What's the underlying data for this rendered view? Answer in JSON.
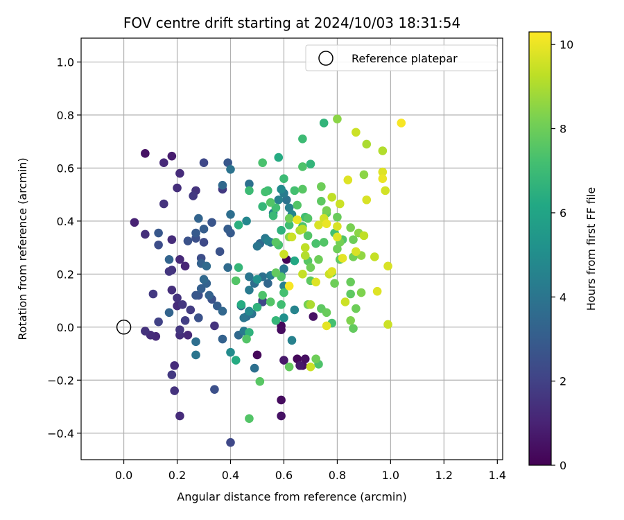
{
  "chart_data": {
    "type": "scatter",
    "title": "FOV centre drift starting at 2024/10/03 18:31:54",
    "xlabel": "Angular distance from reference (arcmin)",
    "ylabel": "Rotation from reference (arcmin)",
    "xlim": [
      -0.16,
      1.42
    ],
    "ylim": [
      -0.5,
      1.09
    ],
    "xticks": [
      0.0,
      0.2,
      0.4,
      0.6,
      0.8,
      1.0,
      1.2,
      1.4
    ],
    "xtick_labels": [
      "0.0",
      "0.2",
      "0.4",
      "0.6",
      "0.8",
      "1.0",
      "1.2",
      "1.4"
    ],
    "yticks": [
      -0.4,
      -0.2,
      0.0,
      0.2,
      0.4,
      0.6,
      0.8,
      1.0
    ],
    "ytick_labels": [
      "−0.4",
      "−0.2",
      "0.0",
      "0.2",
      "0.4",
      "0.6",
      "0.8",
      "1.0"
    ],
    "grid": true,
    "legend": {
      "position": "upper-right",
      "entries": [
        {
          "label": "Reference platepar",
          "marker": "open-circle"
        }
      ]
    },
    "reference_point": {
      "x": 0.0,
      "y": 0.0
    },
    "colorbar": {
      "label": "Hours from first FF file",
      "colormap": "viridis",
      "range": [
        0,
        10.3
      ],
      "ticks": [
        0,
        2,
        4,
        6,
        8,
        10
      ],
      "tick_labels": [
        "0",
        "2",
        "4",
        "6",
        "8",
        "10"
      ]
    },
    "points": [
      {
        "x": 0.08,
        "y": 0.655,
        "c": 0.5
      },
      {
        "x": 0.18,
        "y": 0.645,
        "c": 0.8
      },
      {
        "x": 0.15,
        "y": 0.62,
        "c": 1.2
      },
      {
        "x": 0.21,
        "y": 0.58,
        "c": 1.3
      },
      {
        "x": 0.04,
        "y": 0.395,
        "c": 1.0
      },
      {
        "x": 0.08,
        "y": 0.35,
        "c": 1.4
      },
      {
        "x": 0.15,
        "y": 0.465,
        "c": 1.5
      },
      {
        "x": 0.2,
        "y": 0.525,
        "c": 1.4
      },
      {
        "x": 0.18,
        "y": 0.33,
        "c": 1.3
      },
      {
        "x": 0.21,
        "y": 0.255,
        "c": 1.2
      },
      {
        "x": 0.17,
        "y": 0.21,
        "c": 1.6
      },
      {
        "x": 0.23,
        "y": 0.23,
        "c": 1.1
      },
      {
        "x": 0.18,
        "y": 0.215,
        "c": 1.5
      },
      {
        "x": 0.26,
        "y": 0.495,
        "c": 1.7
      },
      {
        "x": 0.27,
        "y": 0.515,
        "c": 1.5
      },
      {
        "x": 0.3,
        "y": 0.62,
        "c": 2.2
      },
      {
        "x": 0.11,
        "y": 0.125,
        "c": 1.7
      },
      {
        "x": 0.18,
        "y": 0.14,
        "c": 1.4
      },
      {
        "x": 0.2,
        "y": 0.11,
        "c": 1.5
      },
      {
        "x": 0.2,
        "y": 0.08,
        "c": 1.3
      },
      {
        "x": 0.22,
        "y": 0.085,
        "c": 1.6
      },
      {
        "x": 0.13,
        "y": 0.02,
        "c": 2.0
      },
      {
        "x": 0.08,
        "y": -0.015,
        "c": 1.5
      },
      {
        "x": 0.1,
        "y": -0.03,
        "c": 1.3
      },
      {
        "x": 0.12,
        "y": -0.035,
        "c": 1.2
      },
      {
        "x": 0.21,
        "y": -0.01,
        "c": 1.6
      },
      {
        "x": 0.21,
        "y": -0.03,
        "c": 1.4
      },
      {
        "x": 0.24,
        "y": -0.03,
        "c": 1.2
      },
      {
        "x": 0.23,
        "y": 0.025,
        "c": 1.9
      },
      {
        "x": 0.25,
        "y": 0.065,
        "c": 1.8
      },
      {
        "x": 0.19,
        "y": -0.145,
        "c": 1.3
      },
      {
        "x": 0.18,
        "y": -0.18,
        "c": 1.7
      },
      {
        "x": 0.19,
        "y": -0.24,
        "c": 1.5
      },
      {
        "x": 0.21,
        "y": -0.335,
        "c": 1.3
      },
      {
        "x": 0.34,
        "y": 0.005,
        "c": 1.5
      },
      {
        "x": 0.28,
        "y": 0.035,
        "c": 2.4
      },
      {
        "x": 0.13,
        "y": 0.355,
        "c": 2.8
      },
      {
        "x": 0.13,
        "y": 0.31,
        "c": 2.4
      },
      {
        "x": 0.24,
        "y": 0.325,
        "c": 2.6
      },
      {
        "x": 0.27,
        "y": 0.335,
        "c": 2.5
      },
      {
        "x": 0.27,
        "y": 0.355,
        "c": 2.9
      },
      {
        "x": 0.3,
        "y": 0.32,
        "c": 2.3
      },
      {
        "x": 0.28,
        "y": 0.41,
        "c": 3.3
      },
      {
        "x": 0.3,
        "y": 0.37,
        "c": 3.0
      },
      {
        "x": 0.33,
        "y": 0.395,
        "c": 2.7
      },
      {
        "x": 0.37,
        "y": 0.52,
        "c": 1.7
      },
      {
        "x": 0.36,
        "y": 0.285,
        "c": 2.6
      },
      {
        "x": 0.29,
        "y": 0.26,
        "c": 2.4
      },
      {
        "x": 0.29,
        "y": 0.24,
        "c": 3.2
      },
      {
        "x": 0.31,
        "y": 0.23,
        "c": 3.6
      },
      {
        "x": 0.3,
        "y": 0.18,
        "c": 3.5
      },
      {
        "x": 0.31,
        "y": 0.165,
        "c": 3.2
      },
      {
        "x": 0.29,
        "y": 0.145,
        "c": 3.1
      },
      {
        "x": 0.32,
        "y": 0.12,
        "c": 3.2
      },
      {
        "x": 0.27,
        "y": 0.12,
        "c": 2.8
      },
      {
        "x": 0.33,
        "y": 0.105,
        "c": 2.6
      },
      {
        "x": 0.28,
        "y": 0.12,
        "c": 2.5
      },
      {
        "x": 0.28,
        "y": 0.035,
        "c": 2.6
      },
      {
        "x": 0.17,
        "y": 0.055,
        "c": 3.3
      },
      {
        "x": 0.17,
        "y": 0.255,
        "c": 3.3
      },
      {
        "x": 0.35,
        "y": 0.08,
        "c": 3.0
      },
      {
        "x": 0.37,
        "y": 0.06,
        "c": 3.4
      },
      {
        "x": 0.27,
        "y": -0.055,
        "c": 3.7
      },
      {
        "x": 0.27,
        "y": -0.105,
        "c": 4.0
      },
      {
        "x": 0.34,
        "y": -0.235,
        "c": 2.5
      },
      {
        "x": 0.37,
        "y": -0.045,
        "c": 3.2
      },
      {
        "x": 0.4,
        "y": -0.435,
        "c": 2.2
      },
      {
        "x": 0.37,
        "y": 0.535,
        "c": 3.5
      },
      {
        "x": 0.39,
        "y": 0.62,
        "c": 2.8
      },
      {
        "x": 0.4,
        "y": 0.595,
        "c": 3.9
      },
      {
        "x": 0.39,
        "y": 0.37,
        "c": 3.0
      },
      {
        "x": 0.4,
        "y": 0.355,
        "c": 2.9
      },
      {
        "x": 0.4,
        "y": 0.425,
        "c": 3.7
      },
      {
        "x": 0.39,
        "y": 0.225,
        "c": 3.6
      },
      {
        "x": 0.44,
        "y": 0.08,
        "c": 3.4
      },
      {
        "x": 0.43,
        "y": -0.03,
        "c": 3.5
      },
      {
        "x": 0.4,
        "y": -0.095,
        "c": 4.9
      },
      {
        "x": 0.46,
        "y": 0.4,
        "c": 4.7
      },
      {
        "x": 0.47,
        "y": 0.54,
        "c": 3.8
      },
      {
        "x": 0.5,
        "y": 0.305,
        "c": 4.0
      },
      {
        "x": 0.51,
        "y": 0.315,
        "c": 3.5
      },
      {
        "x": 0.45,
        "y": 0.035,
        "c": 4.0
      },
      {
        "x": 0.46,
        "y": 0.04,
        "c": 3.7
      },
      {
        "x": 0.47,
        "y": 0.06,
        "c": 4.8
      },
      {
        "x": 0.48,
        "y": 0.05,
        "c": 3.9
      },
      {
        "x": 0.47,
        "y": 0.14,
        "c": 4.2
      },
      {
        "x": 0.47,
        "y": 0.19,
        "c": 4.0
      },
      {
        "x": 0.49,
        "y": 0.165,
        "c": 3.7
      },
      {
        "x": 0.52,
        "y": 0.19,
        "c": 3.8
      },
      {
        "x": 0.54,
        "y": 0.165,
        "c": 3.4
      },
      {
        "x": 0.5,
        "y": 0.18,
        "c": 5.2
      },
      {
        "x": 0.55,
        "y": 0.195,
        "c": 4.3
      },
      {
        "x": 0.45,
        "y": -0.015,
        "c": 4.2
      },
      {
        "x": 0.49,
        "y": -0.155,
        "c": 3.8
      },
      {
        "x": 0.52,
        "y": 0.1,
        "c": 1.2
      },
      {
        "x": 0.52,
        "y": 0.095,
        "c": 2.2
      },
      {
        "x": 0.53,
        "y": 0.335,
        "c": 4.1
      },
      {
        "x": 0.54,
        "y": 0.325,
        "c": 4.5
      },
      {
        "x": 0.55,
        "y": 0.32,
        "c": 3.8
      },
      {
        "x": 0.58,
        "y": 0.31,
        "c": 4.0
      },
      {
        "x": 0.56,
        "y": 0.43,
        "c": 4.5
      },
      {
        "x": 0.58,
        "y": 0.48,
        "c": 4.5
      },
      {
        "x": 0.59,
        "y": 0.52,
        "c": 4.8
      },
      {
        "x": 0.6,
        "y": 0.505,
        "c": 4.3
      },
      {
        "x": 0.61,
        "y": 0.48,
        "c": 3.9
      },
      {
        "x": 0.62,
        "y": 0.45,
        "c": 4.4
      },
      {
        "x": 0.63,
        "y": 0.425,
        "c": 4.7
      },
      {
        "x": 0.6,
        "y": 0.22,
        "c": 4.0
      },
      {
        "x": 0.59,
        "y": 0.195,
        "c": 4.2
      },
      {
        "x": 0.6,
        "y": 0.155,
        "c": 4.4
      },
      {
        "x": 0.64,
        "y": 0.065,
        "c": 4.6
      },
      {
        "x": 0.63,
        "y": -0.05,
        "c": 4.5
      },
      {
        "x": 0.6,
        "y": 0.035,
        "c": 5.1
      },
      {
        "x": 0.59,
        "y": 0.005,
        "c": 0.2
      },
      {
        "x": 0.59,
        "y": -0.01,
        "c": 0.3
      },
      {
        "x": 0.6,
        "y": -0.125,
        "c": 0.7
      },
      {
        "x": 0.65,
        "y": -0.12,
        "c": 0.2
      },
      {
        "x": 0.66,
        "y": -0.145,
        "c": 0.7
      },
      {
        "x": 0.67,
        "y": -0.145,
        "c": 0.4
      },
      {
        "x": 0.5,
        "y": -0.105,
        "c": 0.2
      },
      {
        "x": 0.59,
        "y": -0.275,
        "c": 0.3
      },
      {
        "x": 0.59,
        "y": -0.335,
        "c": 0.5
      },
      {
        "x": 0.61,
        "y": 0.255,
        "c": 0.1
      },
      {
        "x": 0.71,
        "y": 0.04,
        "c": 0.5
      },
      {
        "x": 0.68,
        "y": -0.12,
        "c": 0.4
      },
      {
        "x": 0.43,
        "y": 0.225,
        "c": 6.8
      },
      {
        "x": 0.42,
        "y": 0.175,
        "c": 7.5
      },
      {
        "x": 0.43,
        "y": 0.385,
        "c": 6.5
      },
      {
        "x": 0.47,
        "y": 0.515,
        "c": 7.0
      },
      {
        "x": 0.52,
        "y": 0.62,
        "c": 7.3
      },
      {
        "x": 0.53,
        "y": 0.51,
        "c": 7.2
      },
      {
        "x": 0.54,
        "y": 0.515,
        "c": 7.0
      },
      {
        "x": 0.52,
        "y": 0.455,
        "c": 6.8
      },
      {
        "x": 0.55,
        "y": 0.47,
        "c": 7.5
      },
      {
        "x": 0.57,
        "y": 0.45,
        "c": 7.1
      },
      {
        "x": 0.56,
        "y": 0.42,
        "c": 6.9
      },
      {
        "x": 0.58,
        "y": 0.64,
        "c": 6.3
      },
      {
        "x": 0.6,
        "y": 0.56,
        "c": 7.0
      },
      {
        "x": 0.57,
        "y": 0.32,
        "c": 7.6
      },
      {
        "x": 0.58,
        "y": 0.31,
        "c": 7.3
      },
      {
        "x": 0.59,
        "y": 0.365,
        "c": 6.6
      },
      {
        "x": 0.62,
        "y": 0.385,
        "c": 7.1
      },
      {
        "x": 0.57,
        "y": 0.205,
        "c": 7.8
      },
      {
        "x": 0.59,
        "y": 0.19,
        "c": 7.5
      },
      {
        "x": 0.6,
        "y": 0.13,
        "c": 7.2
      },
      {
        "x": 0.59,
        "y": 0.085,
        "c": 7.1
      },
      {
        "x": 0.57,
        "y": 0.025,
        "c": 6.8
      },
      {
        "x": 0.44,
        "y": 0.085,
        "c": 6.3
      },
      {
        "x": 0.46,
        "y": -0.045,
        "c": 7.5
      },
      {
        "x": 0.47,
        "y": -0.02,
        "c": 6.6
      },
      {
        "x": 0.42,
        "y": -0.125,
        "c": 6.3
      },
      {
        "x": 0.51,
        "y": -0.205,
        "c": 7.6
      },
      {
        "x": 0.47,
        "y": -0.345,
        "c": 7.5
      },
      {
        "x": 0.5,
        "y": 0.075,
        "c": 6.6
      },
      {
        "x": 0.52,
        "y": 0.12,
        "c": 7.4
      },
      {
        "x": 0.55,
        "y": 0.095,
        "c": 7.5
      },
      {
        "x": 0.62,
        "y": -0.15,
        "c": 7.8
      },
      {
        "x": 0.64,
        "y": 0.25,
        "c": 6.2
      },
      {
        "x": 0.65,
        "y": 0.46,
        "c": 7.5
      },
      {
        "x": 0.64,
        "y": 0.515,
        "c": 7.2
      },
      {
        "x": 0.67,
        "y": 0.52,
        "c": 7.6
      },
      {
        "x": 0.67,
        "y": 0.71,
        "c": 7.0
      },
      {
        "x": 0.67,
        "y": 0.605,
        "c": 7.4
      },
      {
        "x": 0.7,
        "y": 0.615,
        "c": 6.7
      },
      {
        "x": 0.68,
        "y": 0.415,
        "c": 7.1
      },
      {
        "x": 0.69,
        "y": 0.41,
        "c": 7.5
      },
      {
        "x": 0.67,
        "y": 0.38,
        "c": 7.3
      },
      {
        "x": 0.69,
        "y": 0.345,
        "c": 7.5
      },
      {
        "x": 0.72,
        "y": 0.315,
        "c": 7.3
      },
      {
        "x": 0.69,
        "y": 0.25,
        "c": 7.6
      },
      {
        "x": 0.7,
        "y": 0.225,
        "c": 8.0
      },
      {
        "x": 0.7,
        "y": 0.175,
        "c": 7.7
      },
      {
        "x": 0.69,
        "y": 0.085,
        "c": 8.1
      },
      {
        "x": 0.72,
        "y": -0.12,
        "c": 8.0
      },
      {
        "x": 0.73,
        "y": -0.14,
        "c": 7.4
      },
      {
        "x": 0.74,
        "y": 0.07,
        "c": 7.7
      },
      {
        "x": 0.76,
        "y": 0.055,
        "c": 7.9
      },
      {
        "x": 0.78,
        "y": 0.015,
        "c": 7.2
      },
      {
        "x": 0.75,
        "y": 0.77,
        "c": 6.7
      },
      {
        "x": 0.74,
        "y": 0.53,
        "c": 8.0
      },
      {
        "x": 0.74,
        "y": 0.475,
        "c": 7.7
      },
      {
        "x": 0.76,
        "y": 0.44,
        "c": 8.2
      },
      {
        "x": 0.76,
        "y": 0.43,
        "c": 7.8
      },
      {
        "x": 0.75,
        "y": 0.32,
        "c": 7.5
      },
      {
        "x": 0.73,
        "y": 0.255,
        "c": 8.0
      },
      {
        "x": 0.78,
        "y": 0.205,
        "c": 7.5
      },
      {
        "x": 0.79,
        "y": 0.165,
        "c": 8.0
      },
      {
        "x": 0.8,
        "y": 0.785,
        "c": 8.5
      },
      {
        "x": 0.8,
        "y": 0.415,
        "c": 7.9
      },
      {
        "x": 0.79,
        "y": 0.355,
        "c": 7.2
      },
      {
        "x": 0.81,
        "y": 0.32,
        "c": 8.1
      },
      {
        "x": 0.82,
        "y": 0.33,
        "c": 7.5
      },
      {
        "x": 0.8,
        "y": 0.295,
        "c": 8.0
      },
      {
        "x": 0.81,
        "y": 0.255,
        "c": 7.7
      },
      {
        "x": 0.85,
        "y": 0.375,
        "c": 8.2
      },
      {
        "x": 0.86,
        "y": 0.33,
        "c": 8.0
      },
      {
        "x": 0.88,
        "y": 0.355,
        "c": 8.5
      },
      {
        "x": 0.86,
        "y": 0.265,
        "c": 8.1
      },
      {
        "x": 0.85,
        "y": 0.17,
        "c": 7.9
      },
      {
        "x": 0.85,
        "y": 0.125,
        "c": 7.7
      },
      {
        "x": 0.85,
        "y": 0.025,
        "c": 8.3
      },
      {
        "x": 0.86,
        "y": -0.005,
        "c": 7.8
      },
      {
        "x": 0.87,
        "y": 0.07,
        "c": 8.0
      },
      {
        "x": 0.89,
        "y": 0.13,
        "c": 8.3
      },
      {
        "x": 0.89,
        "y": 0.27,
        "c": 8.6
      },
      {
        "x": 0.9,
        "y": 0.575,
        "c": 8.5
      },
      {
        "x": 0.62,
        "y": 0.41,
        "c": 8.0
      },
      {
        "x": 0.62,
        "y": 0.34,
        "c": 8.5
      },
      {
        "x": 0.63,
        "y": 0.34,
        "c": 9.5
      },
      {
        "x": 0.6,
        "y": 0.275,
        "c": 9.5
      },
      {
        "x": 0.62,
        "y": 0.155,
        "c": 10.2
      },
      {
        "x": 0.65,
        "y": 0.405,
        "c": 10.0
      },
      {
        "x": 0.66,
        "y": 0.365,
        "c": 9.0
      },
      {
        "x": 0.67,
        "y": 0.37,
        "c": 9.2
      },
      {
        "x": 0.68,
        "y": 0.3,
        "c": 9.3
      },
      {
        "x": 0.68,
        "y": 0.27,
        "c": 9.1
      },
      {
        "x": 0.67,
        "y": 0.2,
        "c": 9.4
      },
      {
        "x": 0.7,
        "y": 0.085,
        "c": 9.0
      },
      {
        "x": 0.7,
        "y": -0.15,
        "c": 9.5
      },
      {
        "x": 0.72,
        "y": 0.17,
        "c": 9.8
      },
      {
        "x": 0.73,
        "y": 0.385,
        "c": 9.7
      },
      {
        "x": 0.75,
        "y": 0.41,
        "c": 9.6
      },
      {
        "x": 0.76,
        "y": 0.39,
        "c": 10.0
      },
      {
        "x": 0.77,
        "y": 0.2,
        "c": 9.5
      },
      {
        "x": 0.78,
        "y": 0.21,
        "c": 9.8
      },
      {
        "x": 0.78,
        "y": 0.49,
        "c": 9.3
      },
      {
        "x": 0.8,
        "y": 0.38,
        "c": 9.7
      },
      {
        "x": 0.8,
        "y": 0.34,
        "c": 9.8
      },
      {
        "x": 0.81,
        "y": 0.465,
        "c": 9.5
      },
      {
        "x": 0.82,
        "y": 0.26,
        "c": 9.9
      },
      {
        "x": 0.83,
        "y": 0.095,
        "c": 9.5
      },
      {
        "x": 0.76,
        "y": 0.005,
        "c": 9.9
      },
      {
        "x": 0.84,
        "y": 0.555,
        "c": 9.8
      },
      {
        "x": 0.87,
        "y": 0.735,
        "c": 9.5
      },
      {
        "x": 0.87,
        "y": 0.285,
        "c": 9.7
      },
      {
        "x": 0.9,
        "y": 0.345,
        "c": 9.3
      },
      {
        "x": 0.91,
        "y": 0.69,
        "c": 9.0
      },
      {
        "x": 0.91,
        "y": 0.48,
        "c": 9.7
      },
      {
        "x": 0.94,
        "y": 0.265,
        "c": 9.4
      },
      {
        "x": 0.95,
        "y": 0.135,
        "c": 9.8
      },
      {
        "x": 0.97,
        "y": 0.665,
        "c": 9.1
      },
      {
        "x": 0.97,
        "y": 0.585,
        "c": 9.8
      },
      {
        "x": 0.97,
        "y": 0.56,
        "c": 10.0
      },
      {
        "x": 0.98,
        "y": 0.515,
        "c": 9.6
      },
      {
        "x": 0.99,
        "y": 0.23,
        "c": 9.7
      },
      {
        "x": 0.99,
        "y": 0.01,
        "c": 9.5
      },
      {
        "x": 1.04,
        "y": 0.77,
        "c": 10.2
      }
    ]
  }
}
